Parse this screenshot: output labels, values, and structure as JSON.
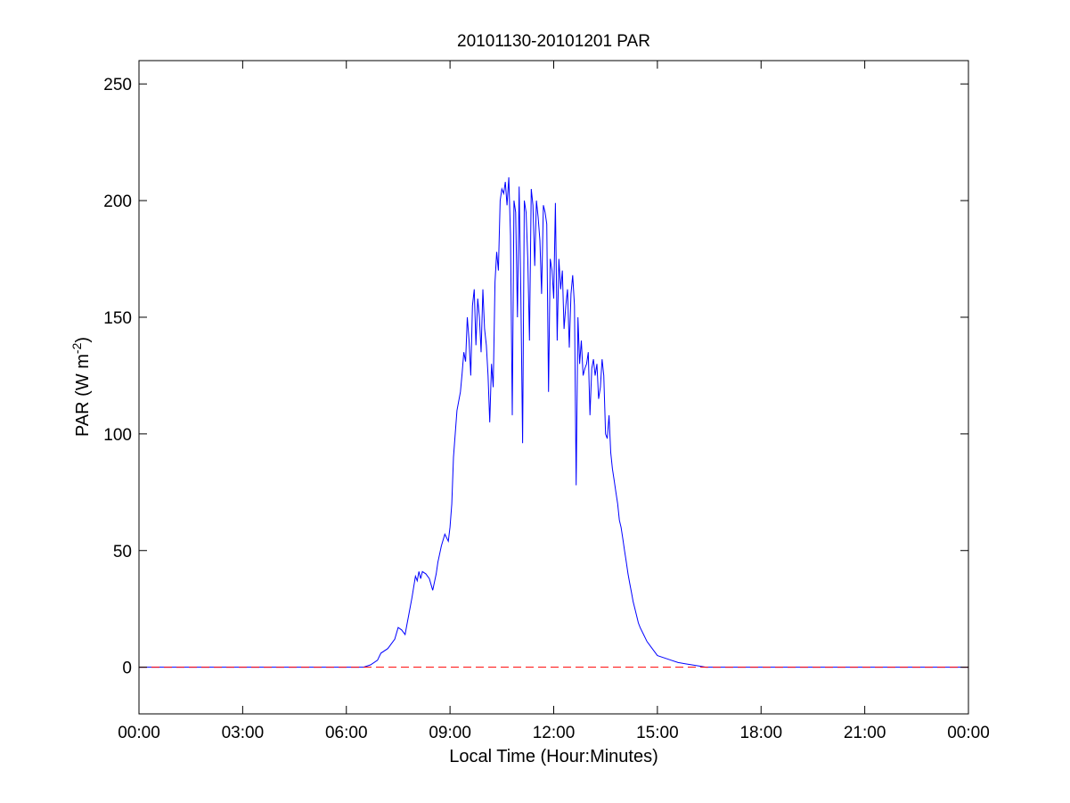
{
  "chart_data": {
    "type": "line",
    "title": "20101130-20101201 PAR",
    "xlabel": "Local Time (Hour:Minutes)",
    "ylabel": {
      "prefix": "PAR (W m",
      "superscript": "-2",
      "suffix": ")"
    },
    "xlim": [
      0,
      24
    ],
    "ylim": [
      -20,
      260
    ],
    "x_ticks": [
      {
        "value": 0,
        "label": "00:00"
      },
      {
        "value": 3,
        "label": "03:00"
      },
      {
        "value": 6,
        "label": "06:00"
      },
      {
        "value": 9,
        "label": "09:00"
      },
      {
        "value": 12,
        "label": "12:00"
      },
      {
        "value": 15,
        "label": "15:00"
      },
      {
        "value": 18,
        "label": "18:00"
      },
      {
        "value": 21,
        "label": "21:00"
      },
      {
        "value": 24,
        "label": "00:00"
      }
    ],
    "y_ticks": [
      {
        "value": 0,
        "label": "0"
      },
      {
        "value": 50,
        "label": "50"
      },
      {
        "value": 100,
        "label": "100"
      },
      {
        "value": 150,
        "label": "150"
      },
      {
        "value": 200,
        "label": "200"
      },
      {
        "value": 250,
        "label": "250"
      }
    ],
    "grid": false,
    "box": true,
    "series": [
      {
        "color": "#0000ff",
        "line_style": "solid",
        "x": [
          0,
          6.5,
          6.7,
          6.9,
          7.0,
          7.2,
          7.4,
          7.5,
          7.6,
          7.7,
          7.75,
          7.8,
          7.9,
          8.0,
          8.05,
          8.1,
          8.15,
          8.2,
          8.3,
          8.4,
          8.5,
          8.6,
          8.65,
          8.75,
          8.85,
          8.95,
          9.0,
          9.05,
          9.1,
          9.2,
          9.3,
          9.35,
          9.4,
          9.45,
          9.5,
          9.55,
          9.6,
          9.65,
          9.7,
          9.75,
          9.8,
          9.85,
          9.9,
          9.95,
          10.0,
          10.05,
          10.1,
          10.15,
          10.2,
          10.25,
          10.3,
          10.35,
          10.4,
          10.45,
          10.5,
          10.55,
          10.6,
          10.65,
          10.7,
          10.75,
          10.8,
          10.85,
          10.9,
          10.95,
          11.0,
          11.05,
          11.1,
          11.15,
          11.2,
          11.25,
          11.3,
          11.35,
          11.4,
          11.45,
          11.5,
          11.55,
          11.6,
          11.65,
          11.7,
          11.75,
          11.8,
          11.85,
          11.9,
          11.95,
          12.0,
          12.05,
          12.1,
          12.15,
          12.2,
          12.25,
          12.3,
          12.35,
          12.4,
          12.45,
          12.5,
          12.55,
          12.6,
          12.65,
          12.7,
          12.75,
          12.8,
          12.85,
          12.9,
          12.95,
          13.0,
          13.05,
          13.1,
          13.15,
          13.2,
          13.25,
          13.3,
          13.35,
          13.4,
          13.45,
          13.5,
          13.55,
          13.6,
          13.65,
          13.7,
          13.75,
          13.8,
          13.85,
          13.9,
          13.95,
          14.0,
          14.05,
          14.1,
          14.15,
          14.2,
          14.25,
          14.3,
          14.35,
          14.4,
          14.45,
          14.5,
          14.6,
          14.7,
          14.8,
          14.9,
          15.0,
          15.2,
          15.4,
          15.6,
          15.8,
          16.0,
          16.2,
          16.4,
          16.6,
          16.8,
          16.95,
          17.1,
          17.2,
          24
        ],
        "y": [
          0,
          0,
          1,
          3,
          6,
          8,
          12,
          17,
          16,
          14,
          18,
          22,
          30,
          39,
          37,
          41,
          38,
          41,
          40,
          38,
          33,
          40,
          45,
          52,
          57,
          54,
          60,
          70,
          90,
          110,
          118,
          126,
          135,
          131,
          150,
          140,
          125,
          155,
          162,
          138,
          158,
          150,
          135,
          162,
          145,
          138,
          125,
          105,
          130,
          120,
          165,
          178,
          170,
          200,
          205,
          203,
          208,
          198,
          210,
          185,
          108,
          200,
          195,
          150,
          206,
          160,
          96,
          200,
          195,
          175,
          140,
          205,
          198,
          172,
          200,
          193,
          183,
          160,
          198,
          195,
          190,
          118,
          175,
          170,
          158,
          199,
          140,
          175,
          162,
          170,
          145,
          155,
          162,
          137,
          160,
          168,
          155,
          78,
          150,
          130,
          140,
          125,
          128,
          130,
          135,
          108,
          128,
          132,
          125,
          130,
          115,
          120,
          132,
          125,
          100,
          98,
          108,
          92,
          85,
          80,
          75,
          70,
          63,
          60,
          55,
          50,
          45,
          40,
          36,
          32,
          28,
          25,
          22,
          19,
          17,
          14,
          11,
          9,
          7,
          5,
          4,
          3,
          2,
          1.5,
          1,
          0.5,
          0,
          0,
          0,
          0,
          0,
          0,
          0
        ]
      },
      {
        "color": "#ff0000",
        "line_style": "dashed",
        "x": [
          0,
          24
        ],
        "y": [
          0,
          0
        ]
      }
    ]
  }
}
